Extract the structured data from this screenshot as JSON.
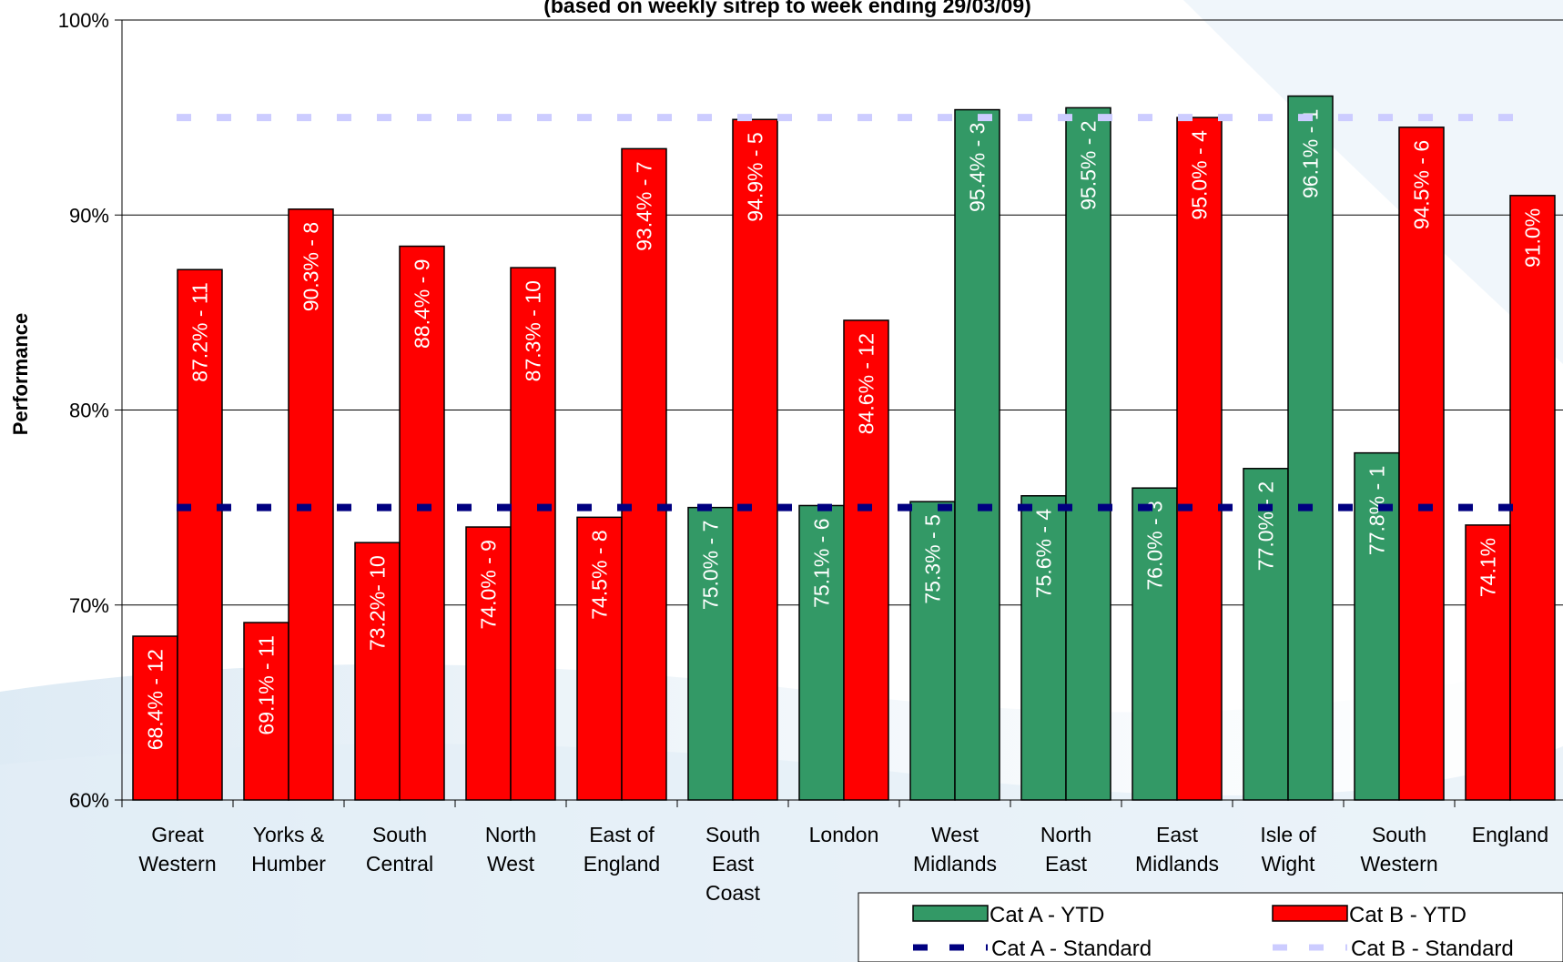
{
  "chart_data": {
    "type": "bar",
    "title": "(based on weekly sitrep to week ending 29/03/09)",
    "ylabel": "Performance",
    "xlabel": "",
    "ylim": [
      0.6,
      1.0
    ],
    "yticks": [
      "60%",
      "70%",
      "80%",
      "90%",
      "100%"
    ],
    "grid": true,
    "legend_position": "bottom-right",
    "categories": [
      [
        "Great",
        "Western"
      ],
      [
        "Yorks &",
        "Humber"
      ],
      [
        "South",
        "Central"
      ],
      [
        "North",
        "West"
      ],
      [
        "East of",
        "England"
      ],
      [
        "South",
        "East",
        "Coast"
      ],
      [
        "London"
      ],
      [
        "West",
        "Midlands"
      ],
      [
        "North",
        "East"
      ],
      [
        "East",
        "Midlands"
      ],
      [
        "Isle of",
        "Wight"
      ],
      [
        "South",
        "Western"
      ],
      [
        "England"
      ]
    ],
    "series": [
      {
        "name": "Cat A - YTD",
        "values": [
          0.684,
          0.691,
          0.732,
          0.74,
          0.745,
          0.75,
          0.751,
          0.753,
          0.756,
          0.76,
          0.77,
          0.778,
          0.741
        ],
        "colors": [
          "#ff0000",
          "#ff0000",
          "#ff0000",
          "#ff0000",
          "#ff0000",
          "#339966",
          "#339966",
          "#339966",
          "#339966",
          "#339966",
          "#339966",
          "#339966",
          "#ff0000"
        ],
        "labels": [
          "68.4% - 12",
          "69.1% - 11",
          "73.2%- 10",
          "74.0% - 9",
          "74.5% - 8",
          "75.0% - 7",
          "75.1% - 6",
          "75.3% - 5",
          "75.6% - 4",
          "76.0% - 3",
          "77.0% - 2",
          "77.8% - 1",
          "74.1%"
        ]
      },
      {
        "name": "Cat B - YTD",
        "values": [
          0.872,
          0.903,
          0.884,
          0.873,
          0.934,
          0.949,
          0.846,
          0.954,
          0.955,
          0.95,
          0.961,
          0.945,
          0.91
        ],
        "colors": [
          "#ff0000",
          "#ff0000",
          "#ff0000",
          "#ff0000",
          "#ff0000",
          "#ff0000",
          "#ff0000",
          "#339966",
          "#339966",
          "#ff0000",
          "#339966",
          "#ff0000",
          "#ff0000"
        ],
        "labels": [
          "87.2% - 11",
          "90.3% - 8",
          "88.4% - 9",
          "87.3% - 10",
          "93.4% - 7",
          "94.9% - 5",
          "84.6% - 12",
          "95.4% - 3",
          "95.5% - 2",
          "95.0% - 4",
          "96.1% - 1",
          "94.5% - 6",
          "91.0%"
        ]
      }
    ],
    "standards": [
      {
        "name": "Cat A - Standard",
        "value": 0.75,
        "color": "#000080"
      },
      {
        "name": "Cat B - Standard",
        "value": 0.95,
        "color": "#ccccff"
      }
    ],
    "legend": [
      {
        "name": "Cat A - YTD",
        "kind": "bar",
        "color": "#339966"
      },
      {
        "name": "Cat B - YTD",
        "kind": "bar",
        "color": "#ff0000"
      },
      {
        "name": "Cat A - Standard",
        "kind": "dash",
        "color": "#000080"
      },
      {
        "name": "Cat B - Standard",
        "kind": "dash",
        "color": "#ccccff"
      }
    ]
  }
}
